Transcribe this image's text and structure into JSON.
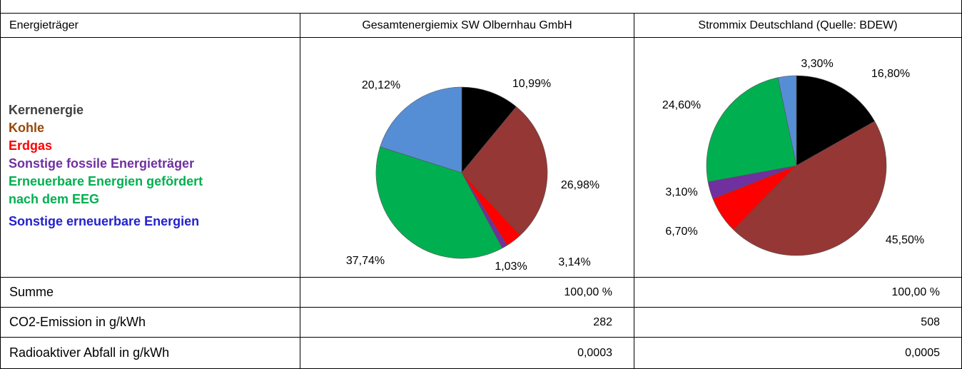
{
  "table": {
    "header": [
      "Energieträger",
      "Gesamtenergiemix SW Olbernhau GmbH",
      "Strommix Deutschland (Quelle: BDEW)"
    ],
    "legend": [
      {
        "name": "Kernenergie",
        "color": "#404040"
      },
      {
        "name": "Kohle",
        "color": "#984807"
      },
      {
        "name": "Erdgas",
        "color": "#ff0000"
      },
      {
        "name": "Sonstige fossile Energieträger",
        "color": "#7030a0"
      },
      {
        "name": "Erneuerbare Energien gefördert nach dem EEG",
        "color": "#00b050"
      },
      {
        "name": "Sonstige erneuerbare Energien",
        "color": "#2222cc"
      }
    ],
    "charts": [
      {
        "type": "pie",
        "values": [
          10.99,
          26.98,
          3.14,
          1.03,
          37.74,
          20.12
        ],
        "value_labels": [
          "10,99%",
          "26,98%",
          "3,14%",
          "1,03%",
          "37,74%",
          "20,12%"
        ],
        "colors": [
          "#000000",
          "#953735",
          "#ff0000",
          "#7030a0",
          "#00b050",
          "#558ed5"
        ]
      },
      {
        "type": "pie",
        "values": [
          16.8,
          45.5,
          6.7,
          3.1,
          24.6,
          3.3
        ],
        "value_labels": [
          "16,80%",
          "45,50%",
          "6,70%",
          "3,10%",
          "24,60%",
          "3,30%"
        ],
        "colors": [
          "#000000",
          "#953735",
          "#ff0000",
          "#7030a0",
          "#00b050",
          "#558ed5"
        ]
      }
    ],
    "rows": [
      [
        "Summe",
        "100,00 %",
        "100,00 %"
      ],
      [
        "CO2-Emission in g/kWh",
        "282",
        "508"
      ],
      [
        "Radioaktiver Abfall in g/kWh",
        "0,0003",
        "0,0005"
      ]
    ]
  }
}
